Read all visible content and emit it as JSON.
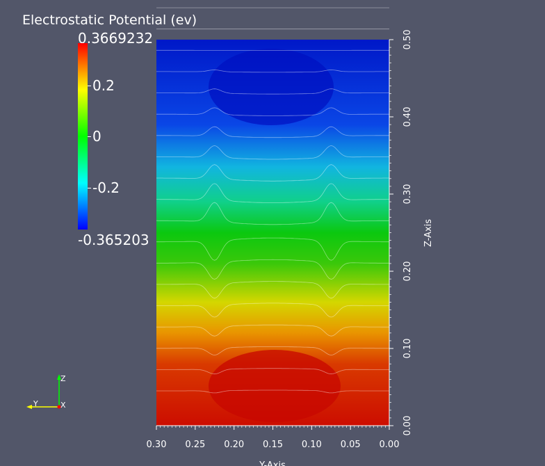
{
  "legend": {
    "title": "Electrostatic Potential (ev)",
    "max_label": "0.3669232",
    "min_label": "-0.365203",
    "range": [
      -0.365203,
      0.3669232
    ],
    "ticks": [
      {
        "value": 0.2,
        "label": "0.2"
      },
      {
        "value": 0.0,
        "label": "0"
      },
      {
        "value": -0.2,
        "label": "-0.2"
      }
    ],
    "colormap": [
      "#0000ff",
      "#00ffff",
      "#00ff00",
      "#ffff00",
      "#ff0000"
    ]
  },
  "chart_data": {
    "type": "heatmap",
    "title": "Electrostatic Potential (ev)",
    "xlabel": "Y-Axis",
    "ylabel": "Z-Axis",
    "xlim": [
      0.3,
      0.0
    ],
    "ylim": [
      0.0,
      0.5
    ],
    "x_ticks": [
      0.3,
      0.25,
      0.2,
      0.15,
      0.1,
      0.05,
      0.0
    ],
    "x_tick_labels": [
      "0.30",
      "0.25",
      "0.20",
      "0.15",
      "0.10",
      "0.05",
      "0.00"
    ],
    "y_ticks": [
      0.0,
      0.1,
      0.2,
      0.3,
      0.4,
      0.5
    ],
    "y_tick_labels": [
      "0.00",
      "0.10",
      "0.20",
      "0.30",
      "0.40",
      "0.50"
    ],
    "x_reversed": true,
    "grid": false,
    "legend_position": "top-left",
    "gradient_direction": "potential decreases with increasing Z",
    "features": [
      {
        "type": "cusp",
        "y": 0.225
      },
      {
        "type": "cusp",
        "y": 0.075
      }
    ],
    "potential_at": [
      {
        "z": 0.0,
        "value": 0.3669232
      },
      {
        "z": 0.25,
        "value": 0.0
      },
      {
        "z": 0.5,
        "value": -0.365203
      }
    ]
  },
  "orientation": {
    "z_label": "Z",
    "y_label": "Y",
    "x_label": "X",
    "colors": {
      "z": "#00ff00",
      "y": "#ffff00",
      "x": "#ff0000"
    }
  }
}
